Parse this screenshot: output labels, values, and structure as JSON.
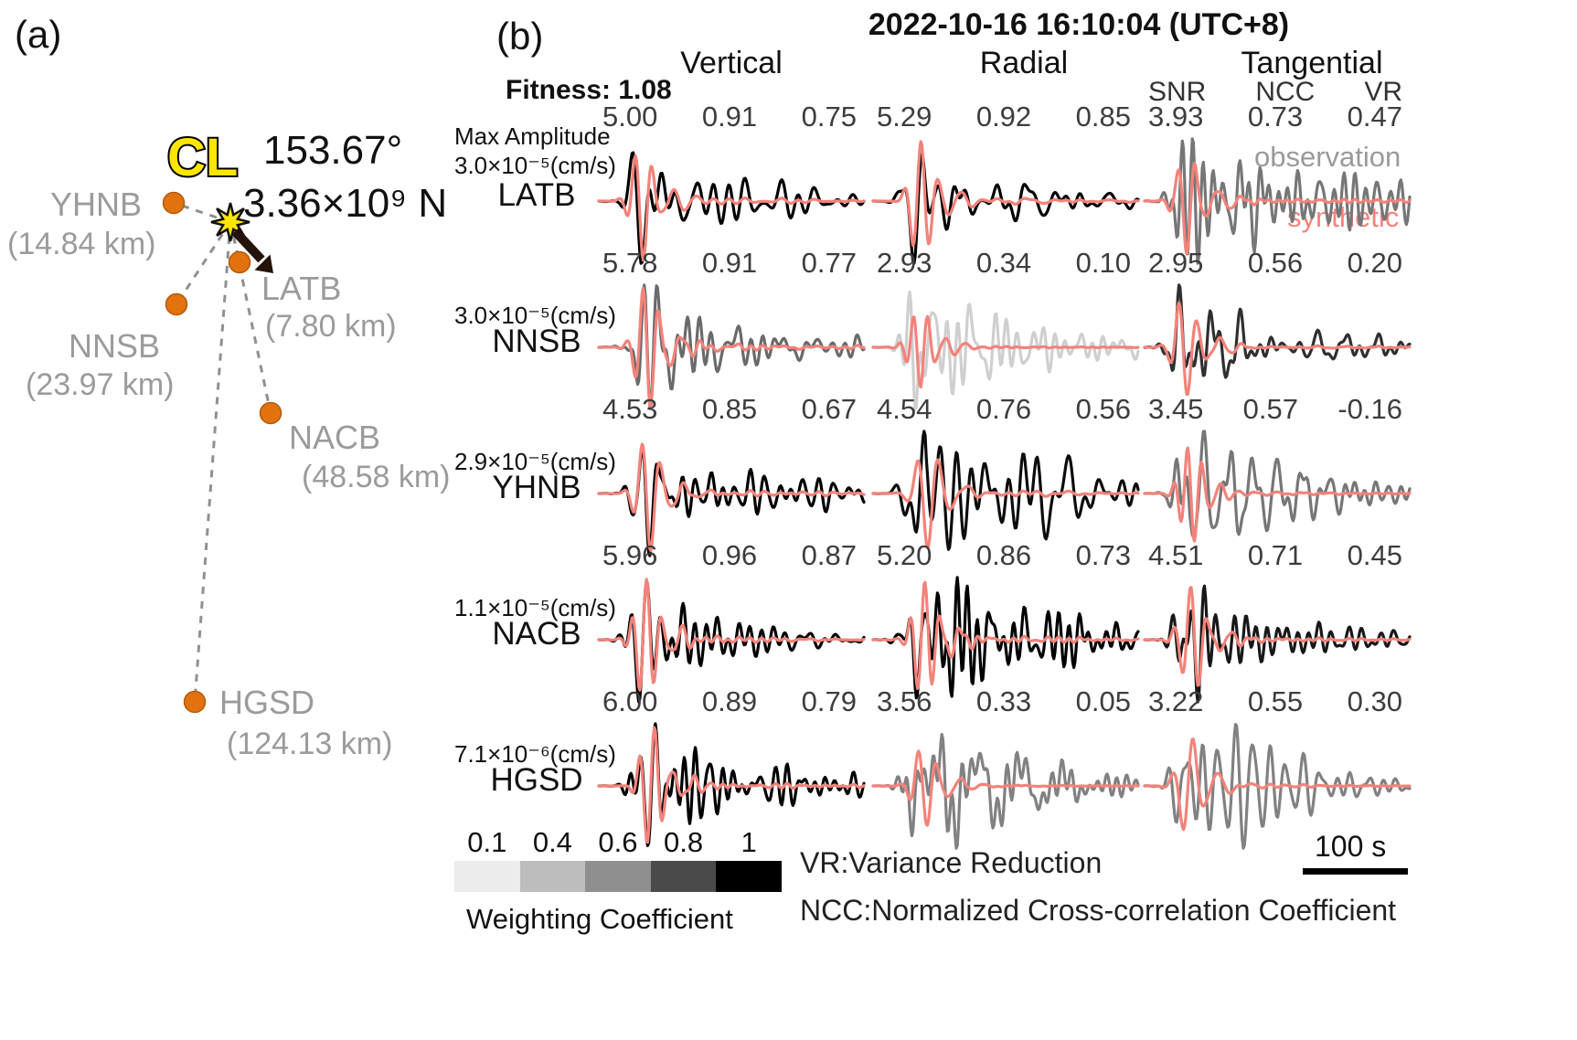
{
  "colors": {
    "synthetic": "#f2837b",
    "observation_legend": "#9a9a9a",
    "station_dot": "#e2720e",
    "event_star": "#ffe500",
    "gray_label": "#9b9b9b",
    "weight_shades": [
      "#ececec",
      "#bdbdbd",
      "#8f8f8f",
      "#4a4a4a",
      "#000000"
    ]
  },
  "panel_a": {
    "label": "(a)",
    "event": {
      "name": "CL",
      "azimuth": "153.67°",
      "force": "3.36×10⁹ N"
    },
    "stations": [
      {
        "name": "YHNB",
        "distance": "(14.84 km)"
      },
      {
        "name": "LATB",
        "distance": "(7.80 km)"
      },
      {
        "name": "NNSB",
        "distance": "(23.97 km)"
      },
      {
        "name": "NACB",
        "distance": "(48.58 km)"
      },
      {
        "name": "HGSD",
        "distance": "(124.13 km)"
      }
    ]
  },
  "panel_b": {
    "label": "(b)",
    "title": "2022-10-16  16:10:04 (UTC+8)",
    "fitness": "Fitness: 1.08",
    "columns": [
      "Vertical",
      "Radial",
      "Tangential"
    ],
    "metric_headers": [
      "SNR",
      "NCC",
      "VR"
    ],
    "max_amplitude_label": "Max Amplitude",
    "legend": {
      "observation": "observation",
      "synthetic": "synthetic"
    },
    "colorbar": {
      "ticks": [
        "0.1",
        "0.4",
        "0.6",
        "0.8",
        "1"
      ],
      "label": "Weighting Coefficient"
    },
    "notes": {
      "vr": "VR:Variance Reduction",
      "ncc": "NCC:Normalized Cross-correlation Coefficient"
    },
    "time_scale": "100 s"
  },
  "chart_data": {
    "type": "line",
    "title": "Waveform fits, event 2022-10-16 16:10:04 (UTC+8), Fitness 1.08",
    "x_axis": {
      "label": "time",
      "scale_bar": "100 s"
    },
    "components": [
      "Vertical",
      "Radial",
      "Tangential"
    ],
    "metrics": [
      "SNR",
      "NCC",
      "VR"
    ],
    "series_legend": [
      "observation",
      "synthetic"
    ],
    "stations": [
      {
        "name": "LATB",
        "max_amplitude": "3.0×10⁻⁵(cm/s)",
        "vertical": {
          "snr": "5.00",
          "ncc": "0.91",
          "vr": "0.75",
          "weight": 1.0
        },
        "radial": {
          "snr": "5.29",
          "ncc": "0.92",
          "vr": "0.85",
          "weight": 1.0
        },
        "tangential": {
          "snr": "3.93",
          "ncc": "0.73",
          "vr": "0.47",
          "weight": 0.5
        }
      },
      {
        "name": "NNSB",
        "max_amplitude": "3.0×10⁻⁵(cm/s)",
        "vertical": {
          "snr": "5.78",
          "ncc": "0.91",
          "vr": "0.77",
          "weight": 0.55
        },
        "radial": {
          "snr": "2.93",
          "ncc": "0.34",
          "vr": "0.10",
          "weight": 0.12
        },
        "tangential": {
          "snr": "2.95",
          "ncc": "0.56",
          "vr": "0.20",
          "weight": 0.8
        }
      },
      {
        "name": "YHNB",
        "max_amplitude": "2.9×10⁻⁵(cm/s)",
        "vertical": {
          "snr": "4.53",
          "ncc": "0.85",
          "vr": "0.67",
          "weight": 1.0
        },
        "radial": {
          "snr": "4.54",
          "ncc": "0.76",
          "vr": "0.56",
          "weight": 0.95
        },
        "tangential": {
          "snr": "3.45",
          "ncc": "0.57",
          "vr": "-0.16",
          "weight": 0.5
        }
      },
      {
        "name": "NACB",
        "max_amplitude": "1.1×10⁻⁵(cm/s)",
        "vertical": {
          "snr": "5.96",
          "ncc": "0.96",
          "vr": "0.87",
          "weight": 1.0
        },
        "radial": {
          "snr": "5.20",
          "ncc": "0.86",
          "vr": "0.73",
          "weight": 1.0
        },
        "tangential": {
          "snr": "4.51",
          "ncc": "0.71",
          "vr": "0.45",
          "weight": 0.9
        }
      },
      {
        "name": "HGSD",
        "max_amplitude": "7.1×10⁻⁶(cm/s)",
        "vertical": {
          "snr": "6.00",
          "ncc": "0.89",
          "vr": "0.79",
          "weight": 1.0
        },
        "radial": {
          "snr": "3.56",
          "ncc": "0.33",
          "vr": "0.05",
          "weight": 0.45
        },
        "tangential": {
          "snr": "3.22",
          "ncc": "0.55",
          "vr": "0.30",
          "weight": 0.45
        }
      }
    ]
  }
}
